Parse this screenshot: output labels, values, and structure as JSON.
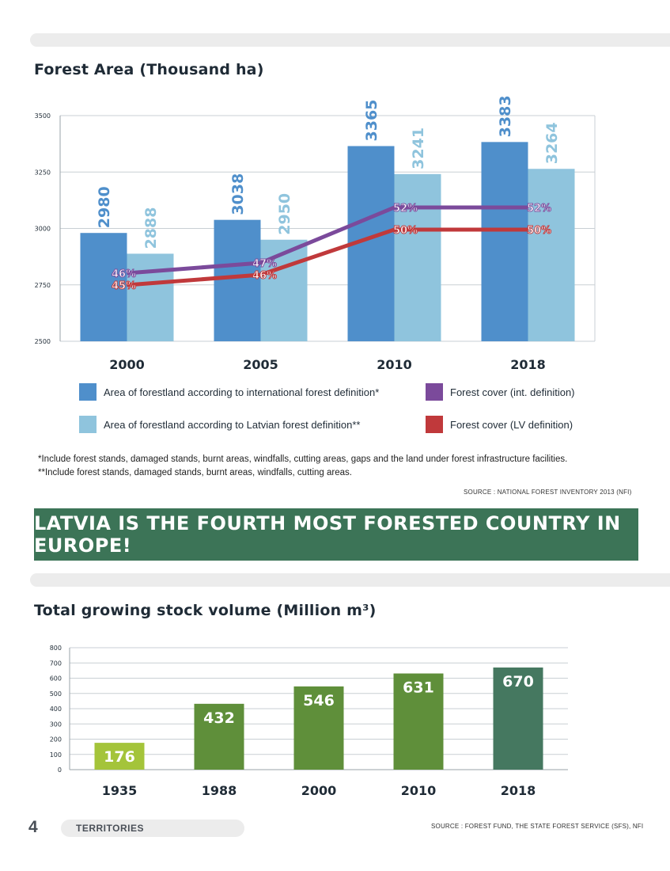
{
  "page": {
    "page_number": "4",
    "section_label": "TERRITORIES",
    "banner": "LATVIA IS THE FOURTH MOST FORESTED COUNTRY IN EUROPE!"
  },
  "chart1_notes": [
    "*Include forest stands, damaged stands, burnt areas, windfalls, cutting areas, gaps and the land under forest infrastructure facilities.",
    "**Include forest stands, damaged stands, burnt areas, windfalls, cutting areas."
  ],
  "chart1_source": "SOURCE : NATIONAL FOREST INVENTORY 2013 (NFI)",
  "chart2_source": "SOURCE : FOREST FUND, THE STATE FOREST SERVICE (SFS), NFI",
  "chart_data": [
    {
      "type": "bar",
      "title": "Forest Area (Thousand ha)",
      "categories": [
        "2000",
        "2005",
        "2010",
        "2018"
      ],
      "ylim": [
        2500,
        3500
      ],
      "yticks": [
        "2500",
        "2750",
        "3000",
        "3250",
        "3500"
      ],
      "grid": true,
      "series": [
        {
          "name": "Area of forestland according to international forest definition*",
          "values": [
            2980,
            3038,
            3365,
            3383
          ],
          "color": "#4f8fcb"
        },
        {
          "name": "Area of forestland according to Latvian forest definition**",
          "values": [
            2888,
            2950,
            3241,
            3264
          ],
          "color": "#8fc4dd"
        }
      ],
      "lines": [
        {
          "name": "Forest cover (int. definition)",
          "labels": [
            "46%",
            "47%",
            "52%",
            "52%"
          ],
          "color": "#7b4a9b"
        },
        {
          "name": "Forest cover (LV definition)",
          "labels": [
            "45%",
            "46%",
            "50%",
            "50%"
          ],
          "color": "#c0393b"
        }
      ]
    },
    {
      "type": "bar",
      "title": "Total growing stock volume (Million m³)",
      "categories": [
        "1935",
        "1988",
        "2000",
        "2010",
        "2018"
      ],
      "values": [
        176,
        432,
        546,
        631,
        670
      ],
      "colors": [
        "#a4c43a",
        "#5f8f3a",
        "#5f8f3a",
        "#5f8f3a",
        "#457860"
      ],
      "ylim": [
        0,
        800
      ],
      "yticks": [
        "0",
        "100",
        "200",
        "300",
        "400",
        "500",
        "600",
        "700",
        "800"
      ],
      "grid": true
    }
  ]
}
